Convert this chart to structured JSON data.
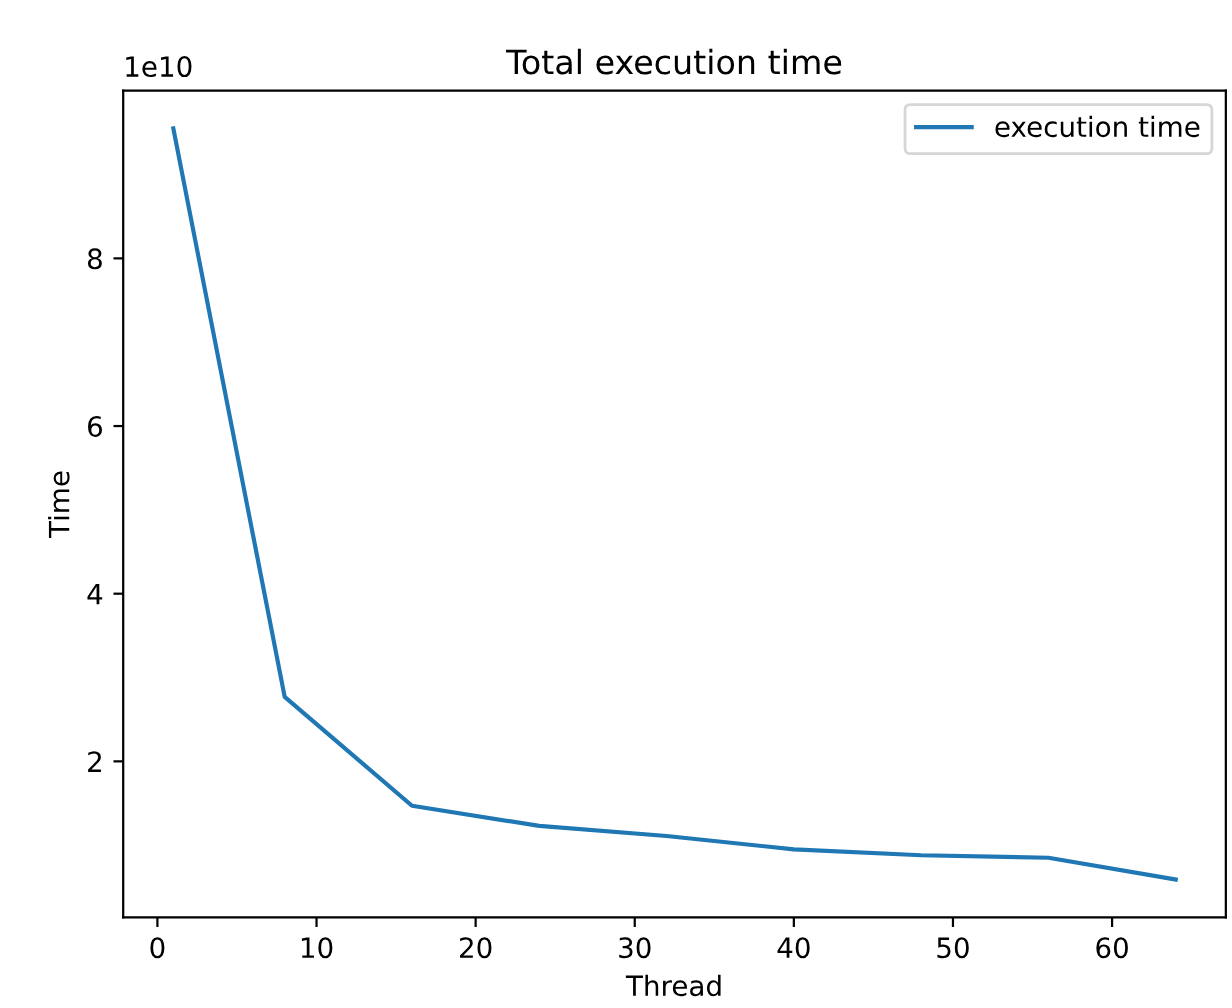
{
  "chart_data": {
    "type": "line",
    "title": "Total execution time",
    "xlabel": "Thread",
    "ylabel": "Time",
    "x": [
      1,
      8,
      16,
      24,
      32,
      40,
      48,
      56,
      64
    ],
    "series": [
      {
        "name": "execution time",
        "color": "#1f77b4",
        "values": [
          9.55,
          2.77,
          1.47,
          1.23,
          1.11,
          0.95,
          0.88,
          0.85,
          0.59
        ]
      }
    ],
    "xlim": [
      -2.15,
      67.15
    ],
    "ylim": [
      0.14,
      10.0
    ],
    "xticks": [
      0,
      10,
      20,
      30,
      40,
      50,
      60
    ],
    "yticks": [
      2,
      4,
      6,
      8
    ],
    "annotations": [
      "1e10"
    ],
    "legend": "top right",
    "grid": false
  }
}
